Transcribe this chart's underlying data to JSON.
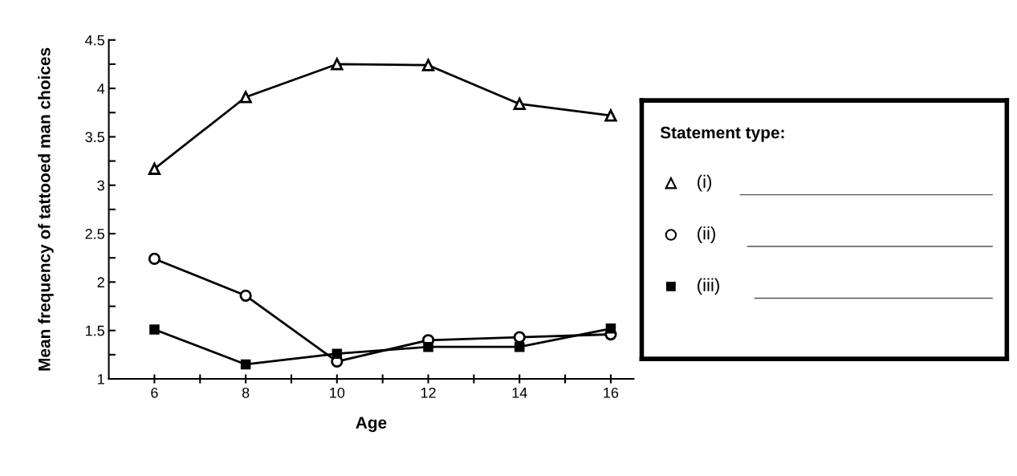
{
  "chart_data": {
    "type": "line",
    "xlabel": "Age",
    "ylabel": "Mean frequency of tattooed man choices",
    "legend_title": "Statement type:",
    "legend": "right",
    "grid": false,
    "line_style": "solid",
    "x": [
      6,
      8,
      10,
      12,
      14,
      16
    ],
    "xlim": [
      5,
      16.5
    ],
    "xticks": [
      6,
      8,
      10,
      12,
      14,
      16,
      {
        "value": 7,
        "label": null
      },
      {
        "value": 9,
        "label": null
      },
      {
        "value": 11,
        "label": null
      },
      {
        "value": 13,
        "label": null
      },
      {
        "value": 15,
        "label": null
      }
    ],
    "ylim": [
      1,
      4.5
    ],
    "yticks": [
      1,
      1.5,
      2,
      2.5,
      3,
      3.5,
      4,
      4.5,
      {
        "value": 1.25,
        "label": null
      },
      {
        "value": 1.75,
        "label": null
      },
      {
        "value": 2.25,
        "label": null
      },
      {
        "value": 2.75,
        "label": null
      },
      {
        "value": 3.25,
        "label": null
      },
      {
        "value": 3.75,
        "label": null
      },
      {
        "value": 4.25,
        "label": null
      }
    ],
    "series": [
      {
        "name": "(i)",
        "color": "#000000",
        "marker": "triangle",
        "values": [
          3.17,
          3.91,
          4.25,
          4.24,
          3.84,
          3.72
        ]
      },
      {
        "name": "(ii)",
        "color": "#000000",
        "marker": "circle",
        "values": [
          2.24,
          1.86,
          1.18,
          1.4,
          1.43,
          1.46
        ]
      },
      {
        "name": "(iii)",
        "color": "#000000",
        "marker": "square",
        "values": [
          1.51,
          1.15,
          1.26,
          1.33,
          1.33,
          1.52
        ]
      }
    ]
  }
}
